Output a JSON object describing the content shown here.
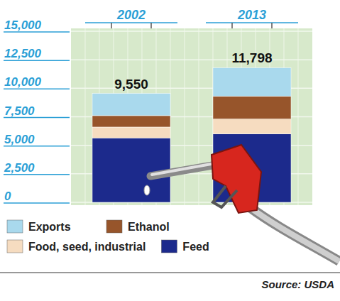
{
  "chart_data": {
    "type": "bar",
    "stacked": true,
    "categories": [
      "2002",
      "2013"
    ],
    "series": [
      {
        "name": "Feed",
        "color": "#1c2a8c",
        "values": [
          5650,
          6000
        ]
      },
      {
        "name": "Food, seed, industrial",
        "color": "#f6dcc0",
        "values": [
          950,
          1300
        ]
      },
      {
        "name": "Ethanol",
        "color": "#97552b",
        "values": [
          1000,
          2000
        ]
      },
      {
        "name": "Exports",
        "color": "#a9d9ed",
        "values": [
          1950,
          2498
        ]
      }
    ],
    "totals": {
      "values": [
        9550,
        11798
      ],
      "value_labels": [
        "9,550",
        "11,798"
      ]
    },
    "ylim": [
      0,
      15000
    ],
    "yticks": [
      0,
      {
        "value": 2500,
        "label": "2,500"
      },
      {
        "value": 5000,
        "label": "5,000"
      },
      {
        "value": 7500,
        "label": "7,500"
      },
      {
        "value": 10000,
        "label": "10,000"
      },
      {
        "value": 12500,
        "label": "12,500"
      },
      {
        "value": 15000,
        "label": "15,000"
      }
    ],
    "grid": true,
    "legend": "bottom",
    "source": "Source: USDA"
  }
}
